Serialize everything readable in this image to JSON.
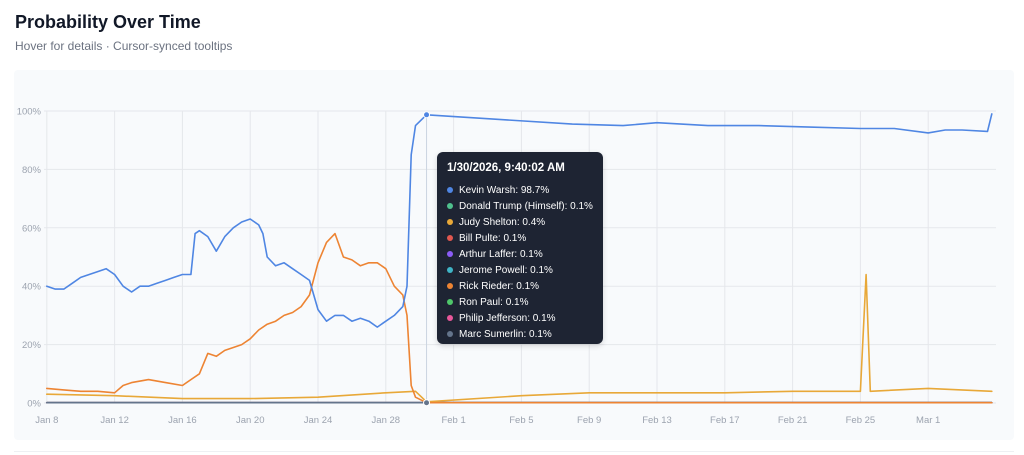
{
  "header": {
    "title": "Probability Over Time",
    "subtitle": "Hover for details · Cursor-synced tooltips"
  },
  "colors": {
    "background": "#ffffff",
    "plot_background": "#f8fafc",
    "grid": "#e5e7eb",
    "tooltip_background": "#1e2433"
  },
  "tooltip": {
    "timestamp": "1/30/2026, 9:40:02 AM",
    "rows": [
      {
        "label": "Kevin Warsh: 98.7%",
        "color": "#4f86e3"
      },
      {
        "label": "Donald Trump (Himself): 0.1%",
        "color": "#4fc08d"
      },
      {
        "label": "Judy Shelton: 0.4%",
        "color": "#e8a838"
      },
      {
        "label": "Bill Pulte: 0.1%",
        "color": "#e0574f"
      },
      {
        "label": "Arthur Laffer: 0.1%",
        "color": "#8b5cf6"
      },
      {
        "label": "Jerome Powell: 0.1%",
        "color": "#3fb4c6"
      },
      {
        "label": "Rick Rieder: 0.1%",
        "color": "#ed8433"
      },
      {
        "label": "Ron Paul: 0.1%",
        "color": "#4fc76a"
      },
      {
        "label": "Philip Jefferson: 0.1%",
        "color": "#e8579a"
      },
      {
        "label": "Marc Sumerlin: 0.1%",
        "color": "#64748b"
      }
    ]
  },
  "chart_data": {
    "type": "line",
    "title": "Probability Over Time",
    "subtitle": "Hover for details · Cursor-synced tooltips",
    "xlabel": "",
    "ylabel": "",
    "x_type": "date",
    "xlim": [
      "2026-01-07T20:00",
      "2026-03-05T00:00"
    ],
    "ylim": [
      0,
      100
    ],
    "y_ticks": [
      0,
      20,
      40,
      60,
      80,
      100
    ],
    "y_tick_labels": [
      "0%",
      "20%",
      "40%",
      "60%",
      "80%",
      "100%"
    ],
    "x_ticks": [
      "2026-01-08",
      "2026-01-12",
      "2026-01-16",
      "2026-01-20",
      "2026-01-24",
      "2026-01-28",
      "2026-02-01",
      "2026-02-05",
      "2026-02-09",
      "2026-02-13",
      "2026-02-17",
      "2026-02-21",
      "2026-02-25",
      "2026-03-01"
    ],
    "x_tick_labels": [
      "Jan 8",
      "Jan 12",
      "Jan 16",
      "Jan 20",
      "Jan 24",
      "Jan 28",
      "Feb 1",
      "Feb 5",
      "Feb 9",
      "Feb 13",
      "Feb 17",
      "Feb 21",
      "Feb 25",
      "Mar 1"
    ],
    "grid": true,
    "legend": "none",
    "hover_marker_time": "2026-01-30T09:40:02",
    "series": [
      {
        "name": "Kevin Warsh",
        "color": "#4f86e3",
        "points": [
          [
            "2026-01-08T00:00",
            40
          ],
          [
            "2026-01-08T12:00",
            39
          ],
          [
            "2026-01-09T00:00",
            39
          ],
          [
            "2026-01-09T12:00",
            41
          ],
          [
            "2026-01-10T00:00",
            43
          ],
          [
            "2026-01-10T12:00",
            44
          ],
          [
            "2026-01-11T00:00",
            45
          ],
          [
            "2026-01-11T12:00",
            46
          ],
          [
            "2026-01-12T00:00",
            44
          ],
          [
            "2026-01-12T12:00",
            40
          ],
          [
            "2026-01-13T00:00",
            38
          ],
          [
            "2026-01-13T12:00",
            40
          ],
          [
            "2026-01-14T00:00",
            40
          ],
          [
            "2026-01-14T12:00",
            41
          ],
          [
            "2026-01-15T00:00",
            42
          ],
          [
            "2026-01-15T12:00",
            43
          ],
          [
            "2026-01-16T00:00",
            44
          ],
          [
            "2026-01-16T12:00",
            44
          ],
          [
            "2026-01-16T18:00",
            58
          ],
          [
            "2026-01-17T00:00",
            59
          ],
          [
            "2026-01-17T12:00",
            57
          ],
          [
            "2026-01-18T00:00",
            52
          ],
          [
            "2026-01-18T12:00",
            57
          ],
          [
            "2026-01-19T00:00",
            60
          ],
          [
            "2026-01-19T12:00",
            62
          ],
          [
            "2026-01-20T00:00",
            63
          ],
          [
            "2026-01-20T12:00",
            61
          ],
          [
            "2026-01-20T18:00",
            58
          ],
          [
            "2026-01-21T00:00",
            50
          ],
          [
            "2026-01-21T12:00",
            47
          ],
          [
            "2026-01-22T00:00",
            48
          ],
          [
            "2026-01-22T12:00",
            46
          ],
          [
            "2026-01-23T00:00",
            44
          ],
          [
            "2026-01-23T12:00",
            42
          ],
          [
            "2026-01-24T00:00",
            32
          ],
          [
            "2026-01-24T12:00",
            28
          ],
          [
            "2026-01-25T00:00",
            30
          ],
          [
            "2026-01-25T12:00",
            30
          ],
          [
            "2026-01-26T00:00",
            28
          ],
          [
            "2026-01-26T12:00",
            29
          ],
          [
            "2026-01-27T00:00",
            28
          ],
          [
            "2026-01-27T12:00",
            26
          ],
          [
            "2026-01-28T00:00",
            28
          ],
          [
            "2026-01-28T12:00",
            30
          ],
          [
            "2026-01-29T00:00",
            33
          ],
          [
            "2026-01-29T06:00",
            40
          ],
          [
            "2026-01-29T12:00",
            85
          ],
          [
            "2026-01-29T18:00",
            95
          ],
          [
            "2026-01-30T09:40",
            98.7
          ],
          [
            "2026-02-08T00:00",
            95.5
          ],
          [
            "2026-02-11T00:00",
            95
          ],
          [
            "2026-02-13T00:00",
            96
          ],
          [
            "2026-02-16T00:00",
            95
          ],
          [
            "2026-02-19T00:00",
            95
          ],
          [
            "2026-02-22T00:00",
            94.5
          ],
          [
            "2026-02-25T00:00",
            94
          ],
          [
            "2026-02-27T00:00",
            94
          ],
          [
            "2026-03-01T00:00",
            92.5
          ],
          [
            "2026-03-02T00:00",
            93.5
          ],
          [
            "2026-03-03T00:00",
            93.5
          ],
          [
            "2026-03-04T12:00",
            93
          ],
          [
            "2026-03-04T18:00",
            99
          ]
        ]
      },
      {
        "name": "Rick Rieder",
        "color": "#ed8433",
        "points": [
          [
            "2026-01-08T00:00",
            5
          ],
          [
            "2026-01-09T00:00",
            4.5
          ],
          [
            "2026-01-10T00:00",
            4
          ],
          [
            "2026-01-11T00:00",
            4
          ],
          [
            "2026-01-12T00:00",
            3.5
          ],
          [
            "2026-01-12T12:00",
            6
          ],
          [
            "2026-01-13T00:00",
            7
          ],
          [
            "2026-01-14T00:00",
            8
          ],
          [
            "2026-01-15T00:00",
            7
          ],
          [
            "2026-01-16T00:00",
            6
          ],
          [
            "2026-01-16T12:00",
            8
          ],
          [
            "2026-01-17T00:00",
            10
          ],
          [
            "2026-01-17T12:00",
            17
          ],
          [
            "2026-01-18T00:00",
            16
          ],
          [
            "2026-01-18T12:00",
            18
          ],
          [
            "2026-01-19T00:00",
            19
          ],
          [
            "2026-01-19T12:00",
            20
          ],
          [
            "2026-01-20T00:00",
            22
          ],
          [
            "2026-01-20T12:00",
            25
          ],
          [
            "2026-01-21T00:00",
            27
          ],
          [
            "2026-01-21T12:00",
            28
          ],
          [
            "2026-01-22T00:00",
            30
          ],
          [
            "2026-01-22T12:00",
            31
          ],
          [
            "2026-01-23T00:00",
            33
          ],
          [
            "2026-01-23T12:00",
            37
          ],
          [
            "2026-01-24T00:00",
            48
          ],
          [
            "2026-01-24T12:00",
            55
          ],
          [
            "2026-01-25T00:00",
            58
          ],
          [
            "2026-01-25T12:00",
            50
          ],
          [
            "2026-01-26T00:00",
            49
          ],
          [
            "2026-01-26T12:00",
            47
          ],
          [
            "2026-01-27T00:00",
            48
          ],
          [
            "2026-01-27T12:00",
            48
          ],
          [
            "2026-01-28T00:00",
            46
          ],
          [
            "2026-01-28T12:00",
            40
          ],
          [
            "2026-01-29T00:00",
            37
          ],
          [
            "2026-01-29T06:00",
            30
          ],
          [
            "2026-01-29T12:00",
            6
          ],
          [
            "2026-01-29T18:00",
            2
          ],
          [
            "2026-01-30T09:40",
            0.1
          ],
          [
            "2026-03-04T18:00",
            0.1
          ]
        ]
      },
      {
        "name": "Judy Shelton",
        "color": "#e8a838",
        "points": [
          [
            "2026-01-08T00:00",
            3
          ],
          [
            "2026-01-12T00:00",
            2.5
          ],
          [
            "2026-01-16T00:00",
            1.5
          ],
          [
            "2026-01-20T00:00",
            1.5
          ],
          [
            "2026-01-24T00:00",
            2
          ],
          [
            "2026-01-28T00:00",
            3.5
          ],
          [
            "2026-01-29T18:00",
            4
          ],
          [
            "2026-01-30T09:40",
            0.4
          ],
          [
            "2026-02-05T00:00",
            2.5
          ],
          [
            "2026-02-09T00:00",
            3.5
          ],
          [
            "2026-02-13T00:00",
            3.5
          ],
          [
            "2026-02-17T00:00",
            3.5
          ],
          [
            "2026-02-21T00:00",
            4
          ],
          [
            "2026-02-25T00:00",
            4
          ],
          [
            "2026-02-25T08:00",
            44
          ],
          [
            "2026-02-25T14:00",
            4
          ],
          [
            "2026-03-01T00:00",
            5
          ],
          [
            "2026-03-04T18:00",
            4
          ]
        ]
      },
      {
        "name": "Donald Trump (Himself)",
        "color": "#4fc08d",
        "points": [
          [
            "2026-01-08T00:00",
            0.1
          ],
          [
            "2026-03-04T18:00",
            0.1
          ]
        ]
      },
      {
        "name": "Bill Pulte",
        "color": "#e0574f",
        "points": [
          [
            "2026-01-08T00:00",
            0.1
          ],
          [
            "2026-03-04T18:00",
            0.1
          ]
        ]
      },
      {
        "name": "Arthur Laffer",
        "color": "#8b5cf6",
        "points": [
          [
            "2026-01-08T00:00",
            0.1
          ],
          [
            "2026-03-04T18:00",
            0.1
          ]
        ]
      },
      {
        "name": "Jerome Powell",
        "color": "#3fb4c6",
        "points": [
          [
            "2026-01-08T00:00",
            0.1
          ],
          [
            "2026-03-04T18:00",
            0.1
          ]
        ]
      },
      {
        "name": "Ron Paul",
        "color": "#4fc76a",
        "points": [
          [
            "2026-01-08T00:00",
            0.1
          ],
          [
            "2026-03-04T18:00",
            0.1
          ]
        ]
      },
      {
        "name": "Philip Jefferson",
        "color": "#e8579a",
        "points": [
          [
            "2026-01-08T00:00",
            0.1
          ],
          [
            "2026-03-04T18:00",
            0.1
          ]
        ]
      },
      {
        "name": "Marc Sumerlin",
        "color": "#64748b",
        "points": [
          [
            "2026-01-08T00:00",
            0.1
          ],
          [
            "2026-03-04T18:00",
            0.1
          ]
        ]
      }
    ]
  }
}
